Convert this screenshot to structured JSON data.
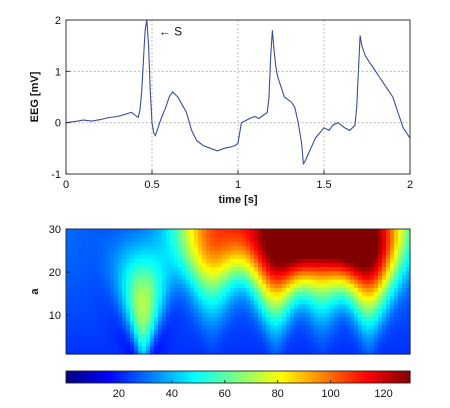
{
  "chart_data": [
    {
      "type": "line",
      "ylabel": "EEG [mV]",
      "xlabel": "time [s]",
      "xlim": [
        0,
        2
      ],
      "ylim": [
        -1,
        2
      ],
      "x_ticks": [
        "0",
        "0.5",
        "1",
        "1.5",
        "2"
      ],
      "y_ticks": [
        "-1",
        "0",
        "1",
        "2"
      ],
      "grid": "dotted",
      "annotation": {
        "text": "← S",
        "x": 0.47,
        "y": 1.8
      },
      "line_color": "#3a4d9c",
      "series": [
        {
          "x": [
            0,
            0.05,
            0.1,
            0.15,
            0.2,
            0.25,
            0.3,
            0.33,
            0.36,
            0.38,
            0.4,
            0.42,
            0.43,
            0.44,
            0.45,
            0.46,
            0.47,
            0.48,
            0.49,
            0.5,
            0.51,
            0.52,
            0.53,
            0.55,
            0.58,
            0.6,
            0.62,
            0.65,
            0.7,
            0.73,
            0.76,
            0.8,
            0.84,
            0.88,
            0.92,
            0.95,
            0.98,
            1.0,
            1.01,
            1.02,
            1.05,
            1.08,
            1.1,
            1.12,
            1.15,
            1.17,
            1.18,
            1.19,
            1.2,
            1.21,
            1.22,
            1.23,
            1.24,
            1.25,
            1.27,
            1.29,
            1.31,
            1.33,
            1.35,
            1.37,
            1.38,
            1.39,
            1.41,
            1.43,
            1.45,
            1.5,
            1.53,
            1.55,
            1.58,
            1.62,
            1.65,
            1.68,
            1.69,
            1.7,
            1.71,
            1.72,
            1.74,
            1.76,
            1.78,
            1.8,
            1.82,
            1.85,
            1.88,
            1.9,
            1.92,
            1.94,
            1.96,
            1.98,
            2.0
          ],
          "y": [
            0.0,
            0.02,
            0.05,
            0.03,
            0.06,
            0.1,
            0.12,
            0.15,
            0.18,
            0.2,
            0.15,
            0.1,
            0.25,
            0.6,
            1.2,
            1.8,
            2.0,
            1.5,
            0.6,
            0.0,
            -0.2,
            -0.25,
            -0.15,
            0.05,
            0.3,
            0.5,
            0.6,
            0.5,
            0.2,
            -0.15,
            -0.35,
            -0.45,
            -0.5,
            -0.55,
            -0.5,
            -0.48,
            -0.45,
            -0.4,
            -0.2,
            0.0,
            0.05,
            0.1,
            0.12,
            0.08,
            0.15,
            0.2,
            0.5,
            1.3,
            1.8,
            1.4,
            1.1,
            0.9,
            0.8,
            0.7,
            0.5,
            0.45,
            0.4,
            0.3,
            0.0,
            -0.4,
            -0.8,
            -0.75,
            -0.6,
            -0.45,
            -0.3,
            -0.1,
            -0.15,
            -0.05,
            0.0,
            -0.1,
            -0.15,
            -0.05,
            0.3,
            1.0,
            1.7,
            1.5,
            1.3,
            1.2,
            1.1,
            1.0,
            0.9,
            0.75,
            0.6,
            0.5,
            0.3,
            0.1,
            -0.1,
            -0.2,
            -0.3
          ]
        }
      ]
    },
    {
      "type": "heatmap",
      "ylabel": "a",
      "y_ticks": [
        "10",
        "20",
        "30"
      ],
      "xlim": [
        0,
        2
      ],
      "ylim": [
        1,
        30
      ],
      "colorbar": {
        "ticks": [
          "20",
          "40",
          "60",
          "80",
          "100",
          "120"
        ],
        "range": [
          0,
          130
        ],
        "colormap": "jet"
      },
      "features": [
        {
          "kind": "pit",
          "x": 0.45,
          "note": "narrow cone, apex at small a"
        },
        {
          "kind": "peak",
          "x": 0.45,
          "a": 12,
          "value": 85
        },
        {
          "kind": "peak",
          "x": 0.85,
          "a": 28,
          "value": 95
        },
        {
          "kind": "peak",
          "x": 1.22,
          "a": 25,
          "value": 120
        },
        {
          "kind": "peak",
          "x": 1.49,
          "a": 28,
          "value": 110
        },
        {
          "kind": "peak",
          "x": 1.76,
          "a": 25,
          "value": 125
        }
      ]
    }
  ]
}
